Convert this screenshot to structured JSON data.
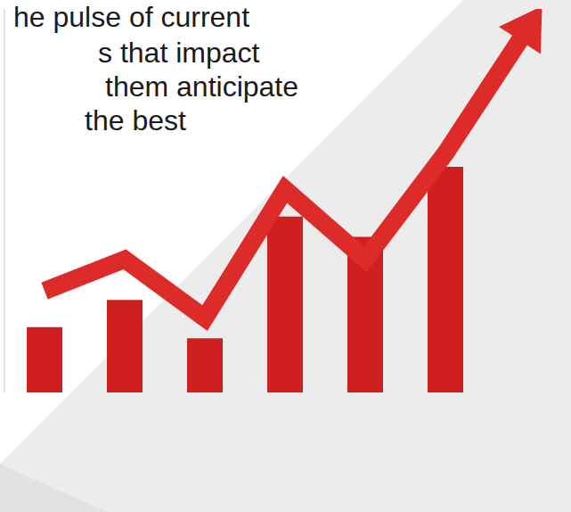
{
  "chart_data": {
    "type": "bar",
    "annotations": [
      "he pulse of current",
      "s that impact",
      "them anticipate",
      "the best"
    ],
    "categories": [
      null,
      null,
      null,
      null,
      null,
      null,
      null
    ],
    "series": [
      {
        "type": "bar",
        "color": "#cf1f1f",
        "values": [
          29,
          41,
          24,
          78,
          69,
          100,
          null
        ]
      },
      {
        "type": "line",
        "color": "#dc2b28",
        "values": [
          45,
          59,
          33,
          90,
          59,
          106,
          160
        ]
      }
    ],
    "ylim": [
      0,
      170
    ],
    "tick_labels": false,
    "grid": false
  }
}
